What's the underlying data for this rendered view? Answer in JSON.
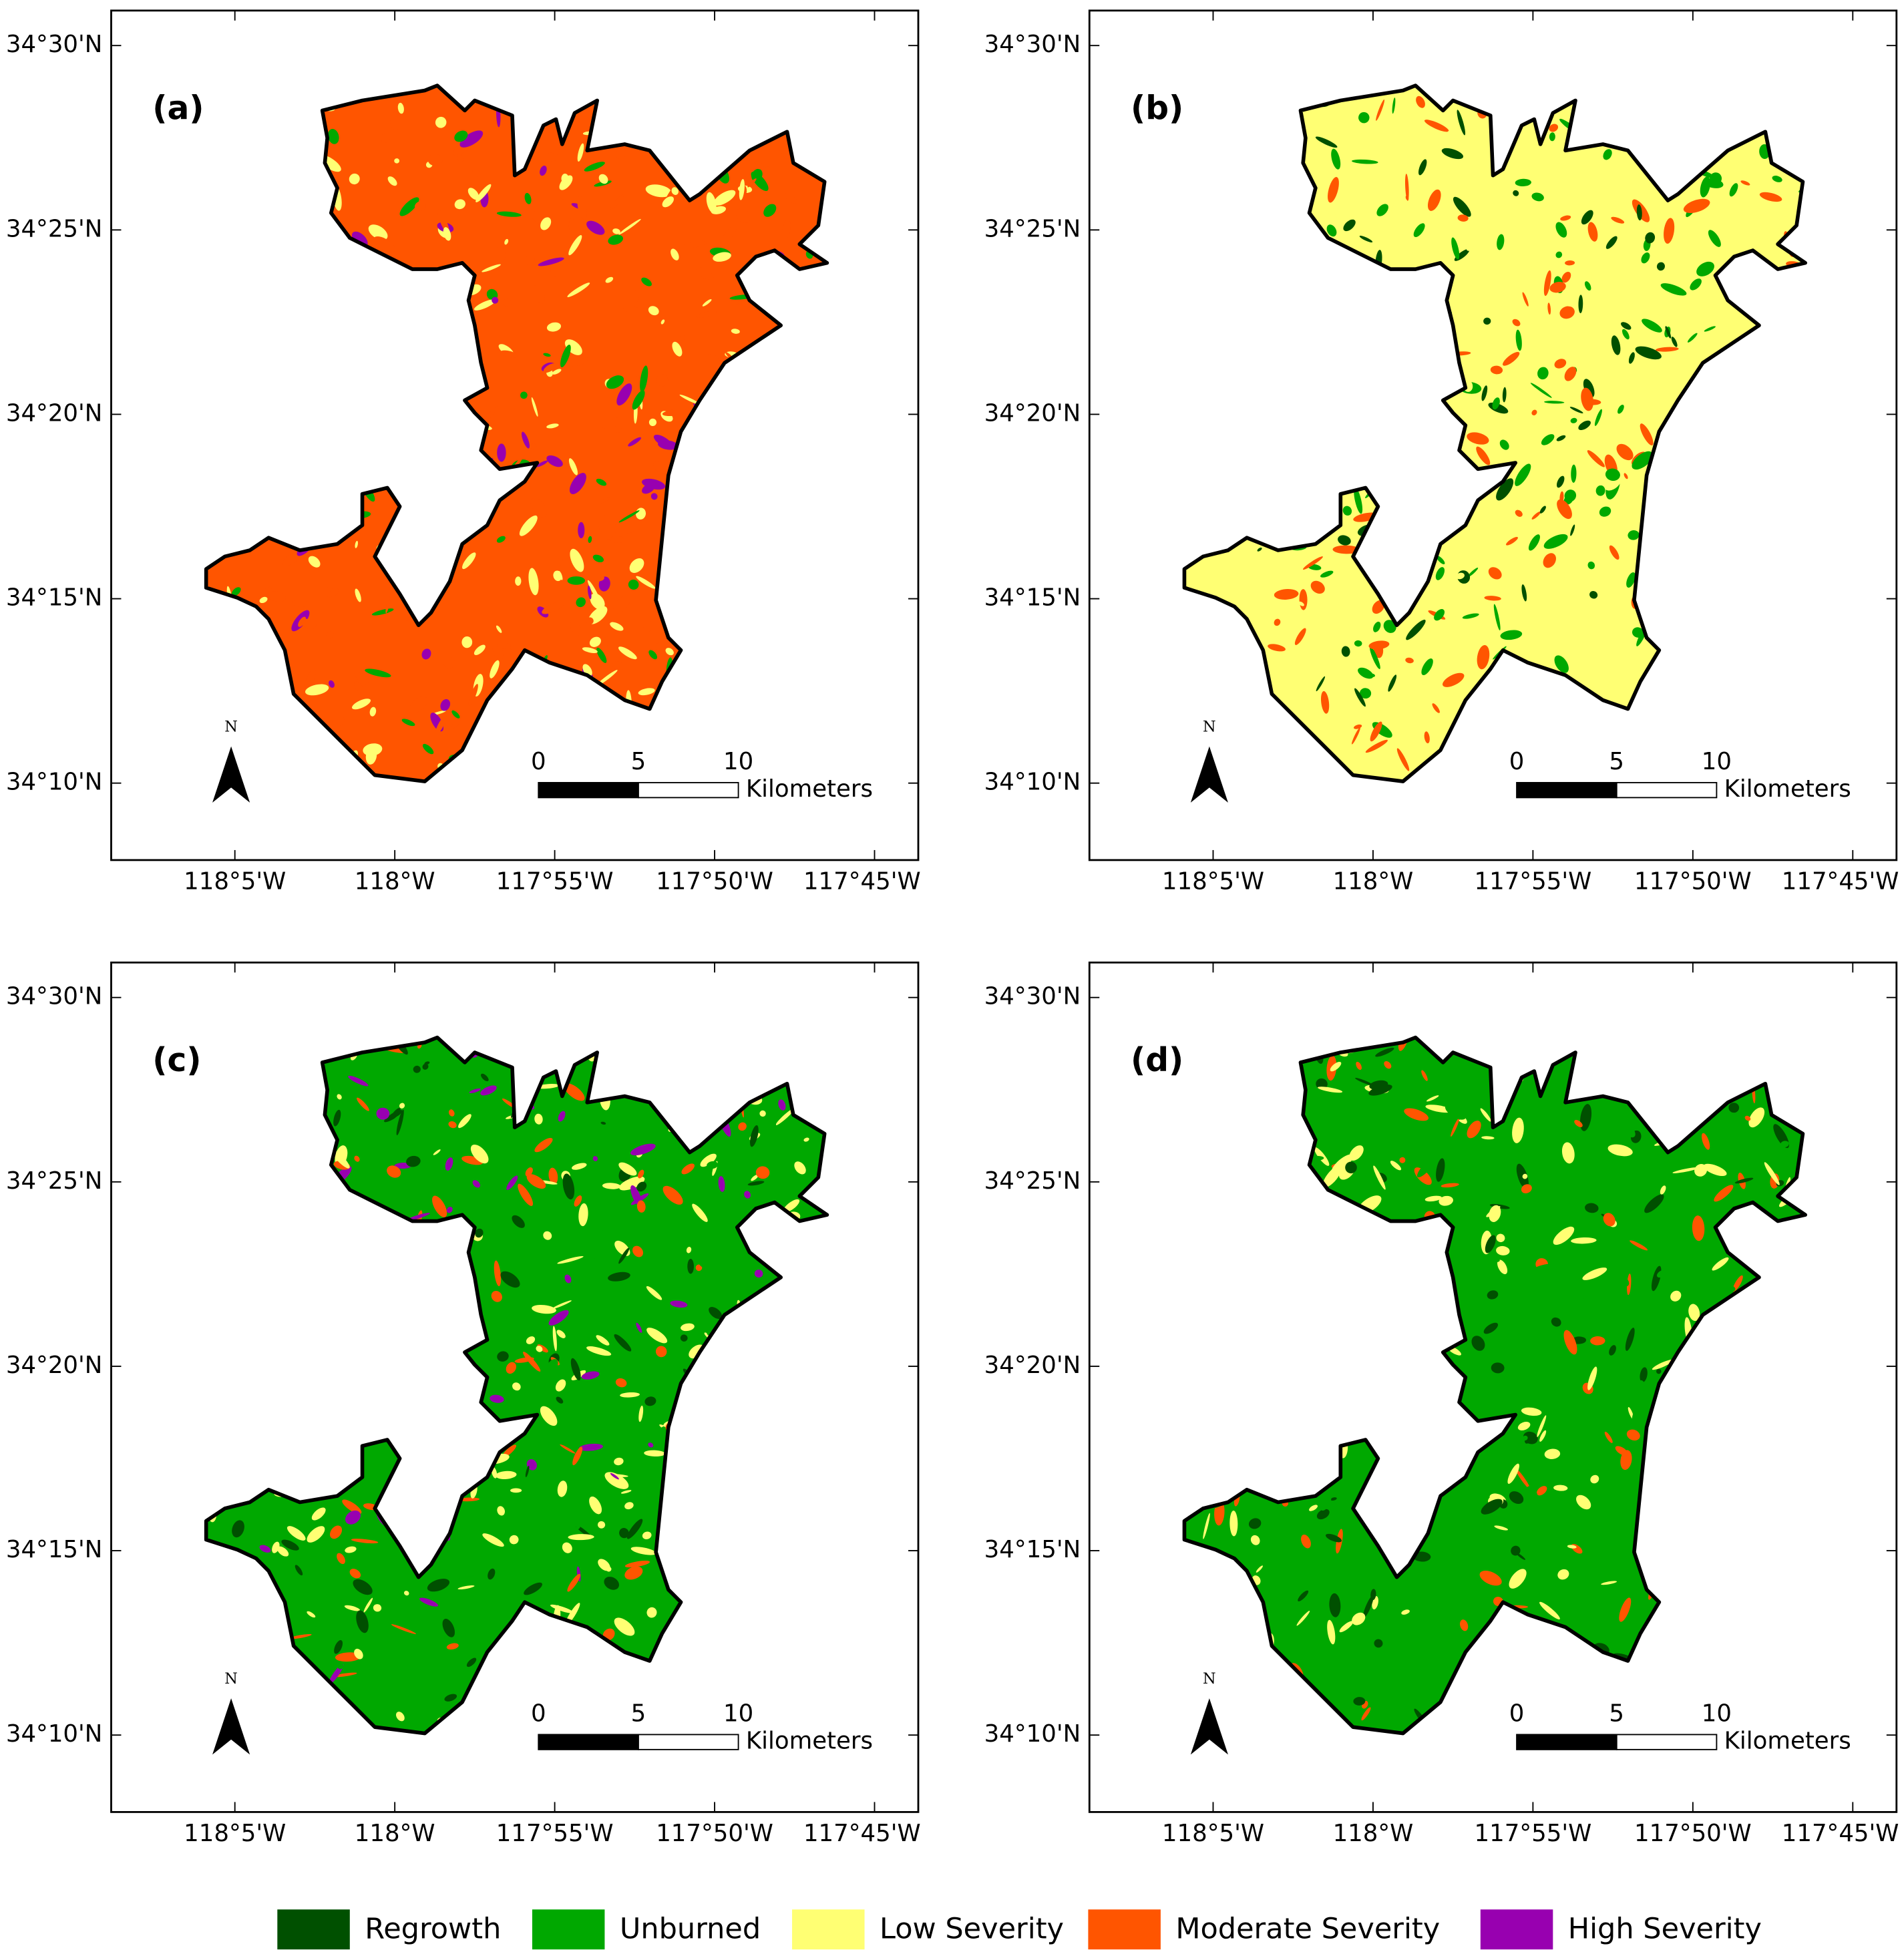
{
  "panels": [
    {
      "label": "(a)"
    },
    {
      "label": "(b)"
    },
    {
      "label": "(c)"
    },
    {
      "label": "(d)"
    }
  ],
  "lat_ticks": [
    "34°30'N",
    "34°25'N",
    "34°20'N",
    "34°15'N",
    "34°10'N"
  ],
  "lon_ticks": [
    "118°5'W",
    "118°W",
    "117°55'W",
    "117°50'W",
    "117°45'W"
  ],
  "scale_bar": {
    "ticks": [
      "0",
      "5",
      "10"
    ],
    "unit": "Kilometers"
  },
  "north": "N",
  "legend": [
    {
      "name": "Regrowth",
      "color": "#005000"
    },
    {
      "name": "Unburned",
      "color": "#00a800"
    },
    {
      "name": "Low Severity",
      "color": "#ffff73"
    },
    {
      "name": "Moderate Severity",
      "color": "#ff5500"
    },
    {
      "name": "High Severity",
      "color": "#9800b0"
    }
  ]
}
